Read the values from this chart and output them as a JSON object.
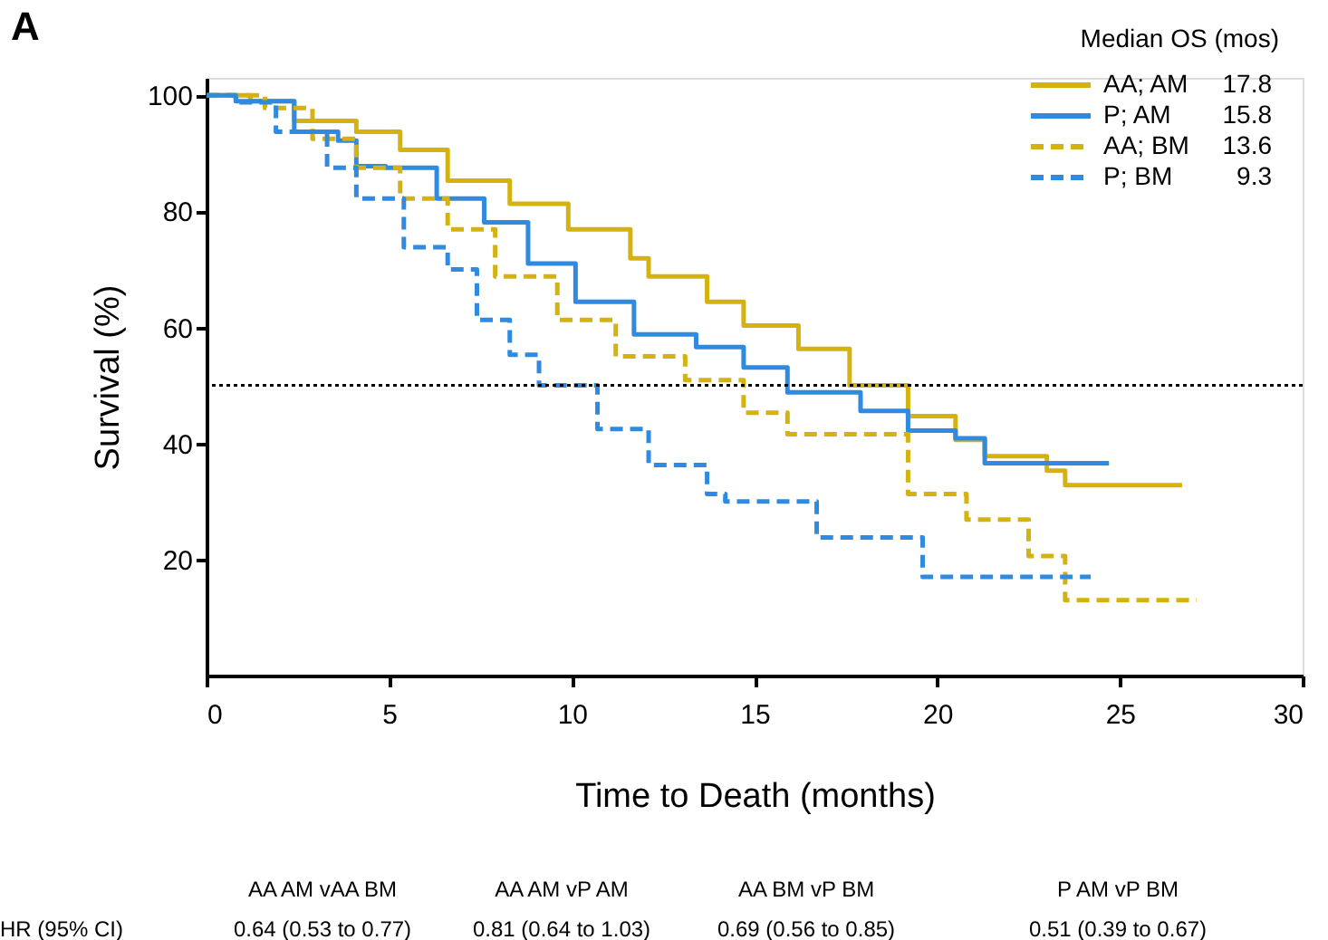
{
  "chart_data": {
    "type": "step",
    "title": "A",
    "xlabel": "Time to Death (months)",
    "ylabel": "Survival (%)",
    "xlim": [
      0,
      30
    ],
    "xticks": [
      0,
      5,
      10,
      15,
      20,
      25,
      30
    ],
    "ylim": [
      0,
      103
    ],
    "yticks": [
      20,
      40,
      60,
      80,
      100
    ],
    "grid": false,
    "legend": "top right",
    "legend_title": "Median OS (mos)",
    "ref_lines": [
      {
        "axis": "y",
        "value": 50,
        "color": "#000000",
        "line_style": "dotted"
      }
    ],
    "series": [
      {
        "name": "AA; AM",
        "color": "#d4b20f",
        "line_style": "solid",
        "x": [
          0,
          1.2,
          2.4,
          4.1,
          5.3,
          6.6,
          8.3,
          9.9,
          11.6,
          12.1,
          13.7,
          14.7,
          16.2,
          17.6,
          19.2,
          20.5,
          21.3,
          23.0,
          23.5,
          26.7
        ],
        "values": [
          100,
          99,
          95.6,
          93.7,
          90.6,
          85.3,
          81.3,
          76.9,
          71.9,
          68.8,
          64.4,
          60.3,
          56.3,
          50,
          44.7,
          40.6,
          37.8,
          35.3,
          32.8,
          32.8
        ]
      },
      {
        "name": "P; AM",
        "color": "#2f8ae0",
        "line_style": "solid",
        "x": [
          0,
          0.8,
          2.4,
          3.6,
          4.1,
          4.9,
          6.3,
          7.6,
          8.8,
          10.1,
          11.7,
          13.4,
          14.7,
          15.9,
          17.9,
          19.2,
          20.5,
          21.3,
          24.7
        ],
        "values": [
          100,
          99,
          93.7,
          92.2,
          87.8,
          87.5,
          82.2,
          78.1,
          71,
          64.4,
          58.8,
          56.6,
          53.1,
          48.8,
          45.6,
          42.2,
          40.9,
          36.6,
          36.6
        ]
      },
      {
        "name": "AA; BM",
        "color": "#d4b20f",
        "line_style": "dashed",
        "x": [
          0,
          1.6,
          2.9,
          4.1,
          5.3,
          6.6,
          7.9,
          9.6,
          11.2,
          13.1,
          14.7,
          15.9,
          19.2,
          20.8,
          22.5,
          23.5,
          27.1
        ],
        "values": [
          100,
          97.8,
          92.5,
          87.5,
          82.2,
          76.9,
          68.8,
          61.3,
          55,
          50.9,
          45.3,
          41.6,
          31.3,
          26.9,
          20.6,
          13,
          13
        ]
      },
      {
        "name": "P; BM",
        "color": "#2f8ae0",
        "line_style": "dashed",
        "x": [
          0,
          0.8,
          1.9,
          3.3,
          4.1,
          5.4,
          6.6,
          7.4,
          8.3,
          9.1,
          10.7,
          12.1,
          13.7,
          14.2,
          16.7,
          19.6,
          24.2
        ],
        "values": [
          100,
          98.8,
          93.7,
          87.5,
          82.2,
          73.8,
          70,
          61.3,
          55.3,
          50,
          42.5,
          36.3,
          31.3,
          30,
          23.8,
          17,
          17
        ]
      }
    ],
    "annotations": [
      "17.8",
      "15.8",
      "13.6",
      "9.3",
      "HR (95% CI)",
      "AA AM vAA BM",
      "AA AM vP AM",
      "AA BM vP BM",
      "P AM vP BM",
      "0.64 (0.53 to 0.77)",
      "0.81 (0.64 to 1.03)",
      "0.69 (0.56 to 0.85)",
      "0.51 (0.39 to 0.67)"
    ]
  }
}
